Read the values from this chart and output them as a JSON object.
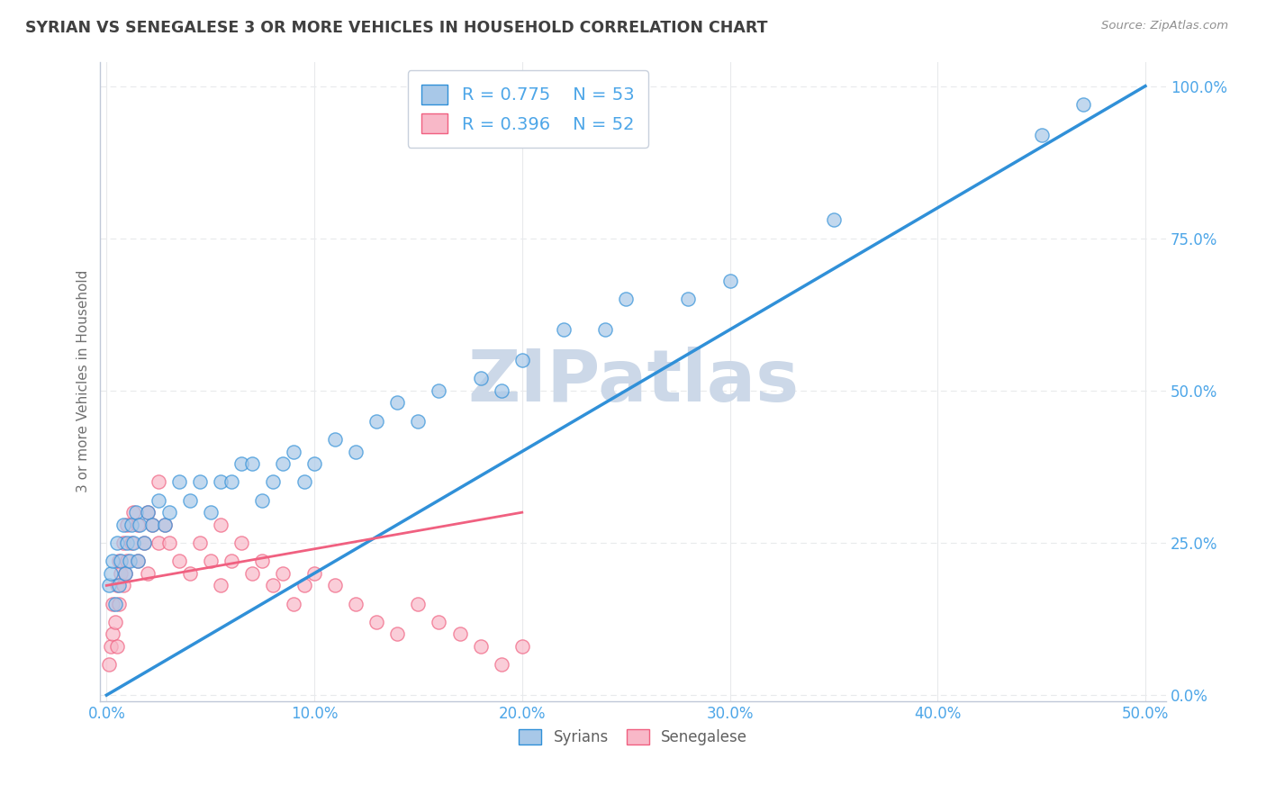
{
  "title": "SYRIAN VS SENEGALESE 3 OR MORE VEHICLES IN HOUSEHOLD CORRELATION CHART",
  "source": "Source: ZipAtlas.com",
  "ylabel": "3 or more Vehicles in Household",
  "syrian_R": "0.775",
  "syrian_N": "53",
  "senegalese_R": "0.396",
  "senegalese_N": "52",
  "syrian_color": "#a8c8e8",
  "senegalese_color": "#f8b8c8",
  "syrian_line_color": "#3090d8",
  "senegalese_line_color": "#f06080",
  "title_color": "#404040",
  "axis_label_color": "#707070",
  "tick_color": "#4da6e8",
  "legend_R_color": "#4da6e8",
  "watermark": "ZIPatlas",
  "watermark_color": "#ccd8e8",
  "grid_color": "#e8eaec",
  "ref_line_color": "#c8b8c8",
  "xlim_min": 0,
  "xlim_max": 50,
  "ylim_min": 0,
  "ylim_max": 100,
  "xticks": [
    0,
    10,
    20,
    30,
    40,
    50
  ],
  "yticks": [
    0,
    25,
    50,
    75,
    100
  ],
  "syrian_x": [
    0.1,
    0.2,
    0.3,
    0.4,
    0.5,
    0.6,
    0.7,
    0.8,
    0.9,
    1.0,
    1.1,
    1.2,
    1.3,
    1.4,
    1.5,
    1.6,
    1.8,
    2.0,
    2.2,
    2.5,
    2.8,
    3.0,
    3.5,
    4.0,
    4.5,
    5.0,
    5.5,
    6.0,
    6.5,
    7.0,
    7.5,
    8.0,
    8.5,
    9.0,
    9.5,
    10.0,
    11.0,
    12.0,
    13.0,
    14.0,
    15.0,
    16.0,
    18.0,
    19.0,
    20.0,
    22.0,
    24.0,
    25.0,
    28.0,
    30.0,
    35.0,
    45.0,
    47.0
  ],
  "syrian_y": [
    18,
    20,
    22,
    15,
    25,
    18,
    22,
    28,
    20,
    25,
    22,
    28,
    25,
    30,
    22,
    28,
    25,
    30,
    28,
    32,
    28,
    30,
    35,
    32,
    35,
    30,
    35,
    35,
    38,
    38,
    32,
    35,
    38,
    40,
    35,
    38,
    42,
    40,
    45,
    48,
    45,
    50,
    52,
    50,
    55,
    60,
    60,
    65,
    65,
    68,
    78,
    92,
    97
  ],
  "senegalese_x": [
    0.1,
    0.2,
    0.3,
    0.3,
    0.4,
    0.5,
    0.5,
    0.6,
    0.6,
    0.7,
    0.8,
    0.8,
    0.9,
    1.0,
    1.0,
    1.2,
    1.3,
    1.5,
    1.5,
    1.8,
    2.0,
    2.0,
    2.2,
    2.5,
    2.5,
    2.8,
    3.0,
    3.5,
    4.0,
    4.5,
    5.0,
    5.5,
    5.5,
    6.0,
    6.5,
    7.0,
    7.5,
    8.0,
    8.5,
    9.0,
    9.5,
    10.0,
    11.0,
    12.0,
    13.0,
    14.0,
    15.0,
    16.0,
    17.0,
    18.0,
    19.0,
    20.0
  ],
  "senegalese_y": [
    5,
    8,
    10,
    15,
    12,
    18,
    8,
    22,
    15,
    20,
    18,
    25,
    20,
    22,
    28,
    25,
    30,
    22,
    28,
    25,
    30,
    20,
    28,
    25,
    35,
    28,
    25,
    22,
    20,
    25,
    22,
    28,
    18,
    22,
    25,
    20,
    22,
    18,
    20,
    15,
    18,
    20,
    18,
    15,
    12,
    10,
    15,
    12,
    10,
    8,
    5,
    8
  ]
}
